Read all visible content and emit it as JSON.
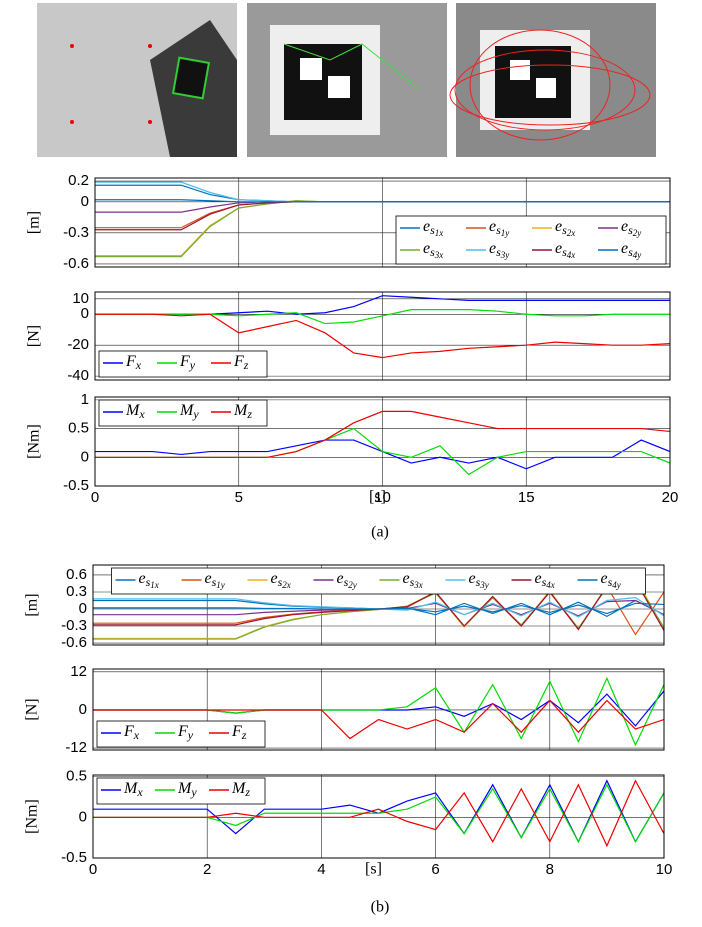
{
  "captions": [
    "(a)",
    "(b)"
  ],
  "chart_data": [
    {
      "type": "line",
      "ylabel": "[m]",
      "xlim": [
        0,
        20
      ],
      "xticks": [
        0,
        5,
        10,
        15,
        20
      ],
      "xtick_labels": false,
      "ylim": [
        -0.63,
        0.23
      ],
      "yticks": [
        0.2,
        0,
        -0.3,
        -0.6
      ],
      "grid": true,
      "legend": "lower right",
      "legend_columns": 4,
      "x": [
        0,
        1,
        2,
        3,
        4,
        5,
        6,
        7,
        8,
        9,
        10,
        11,
        12,
        13,
        14,
        15,
        16,
        17,
        18,
        19,
        20
      ],
      "series": [
        {
          "name": "es1x",
          "color": "#0072bd",
          "values": [
            0.16,
            0.16,
            0.16,
            0.16,
            0.07,
            0.02,
            0.01,
            0,
            0,
            0,
            0,
            0,
            0,
            0,
            0,
            0,
            0,
            0,
            0,
            0,
            0
          ]
        },
        {
          "name": "es1y",
          "color": "#d95319",
          "values": [
            -0.25,
            -0.25,
            -0.25,
            -0.25,
            -0.11,
            -0.03,
            -0.01,
            0,
            0,
            0,
            0,
            0,
            0,
            0,
            0,
            0,
            0,
            0,
            0,
            0,
            0
          ]
        },
        {
          "name": "es2x",
          "color": "#edb120",
          "values": [
            -0.52,
            -0.52,
            -0.52,
            -0.52,
            -0.23,
            -0.06,
            -0.02,
            0.01,
            0,
            0,
            0,
            0,
            0,
            0,
            0,
            0,
            0,
            0,
            0,
            0,
            0
          ]
        },
        {
          "name": "es2y",
          "color": "#7e2f8e",
          "values": [
            -0.1,
            -0.1,
            -0.1,
            -0.1,
            -0.05,
            -0.01,
            0,
            0,
            0,
            0,
            0,
            0,
            0,
            0,
            0,
            0,
            0,
            0,
            0,
            0,
            0
          ]
        },
        {
          "name": "es3x",
          "color": "#77ac30",
          "values": [
            -0.53,
            -0.53,
            -0.53,
            -0.53,
            -0.24,
            -0.06,
            -0.02,
            0.01,
            0,
            0,
            0,
            0,
            0,
            0,
            0,
            0,
            0,
            0,
            0,
            0,
            0
          ]
        },
        {
          "name": "es3y",
          "color": "#4dbeee",
          "values": [
            0.19,
            0.19,
            0.19,
            0.19,
            0.09,
            0.02,
            0.01,
            0,
            0,
            0,
            0,
            0,
            0,
            0,
            0,
            0,
            0,
            0,
            0,
            0,
            0
          ]
        },
        {
          "name": "es4x",
          "color": "#a2142f",
          "values": [
            -0.27,
            -0.27,
            -0.27,
            -0.27,
            -0.12,
            -0.03,
            -0.01,
            0,
            0,
            0,
            0,
            0,
            0,
            0,
            0,
            0,
            0,
            0,
            0,
            0,
            0
          ]
        },
        {
          "name": "es4y",
          "color": "#0072bd",
          "values": [
            0.02,
            0.02,
            0.02,
            0.02,
            0.01,
            0,
            0,
            0,
            0,
            0,
            0,
            0,
            0,
            0,
            0,
            0,
            0,
            0,
            0,
            0,
            0
          ]
        }
      ]
    },
    {
      "type": "line",
      "ylabel": "[N]",
      "xlim": [
        0,
        20
      ],
      "xticks": [
        0,
        5,
        10,
        15,
        20
      ],
      "xtick_labels": false,
      "ylim": [
        -42.5,
        14.4
      ],
      "yticks": [
        10,
        0,
        -20,
        -40
      ],
      "grid": true,
      "legend": "lower left",
      "legend_columns": 3,
      "x": [
        0,
        1,
        2,
        3,
        4,
        5,
        6,
        7,
        8,
        9,
        10,
        11,
        12,
        13,
        14,
        15,
        16,
        17,
        18,
        19,
        20
      ],
      "series": [
        {
          "name": "Fx",
          "color": "#0000ff",
          "values": [
            0,
            0,
            0,
            0,
            0,
            1,
            2,
            0,
            1,
            5,
            12,
            11,
            10,
            9,
            9,
            9,
            9,
            9,
            9,
            9,
            9
          ]
        },
        {
          "name": "Fy",
          "color": "#00dd00",
          "values": [
            0,
            0,
            0,
            0,
            0,
            -1,
            0,
            1,
            -6,
            -5,
            -1,
            3,
            3,
            3,
            2,
            0,
            -1,
            -1,
            0,
            0,
            0
          ]
        },
        {
          "name": "Fz",
          "color": "#ee0000",
          "values": [
            0,
            0,
            0,
            -1,
            0,
            -12,
            -8,
            -4,
            -12,
            -25,
            -28,
            -25,
            -24,
            -22,
            -21,
            -20,
            -18,
            -19,
            -20,
            -20,
            -19
          ]
        }
      ]
    },
    {
      "type": "line",
      "ylabel": "[Nm]",
      "xlabel": "[s]",
      "xlim": [
        0,
        20
      ],
      "xticks": [
        0,
        5,
        10,
        15,
        20
      ],
      "xtick_labels": true,
      "ylim": [
        -0.5,
        1.05
      ],
      "yticks": [
        1,
        0.5,
        0,
        -0.5
      ],
      "grid": true,
      "legend": "upper left",
      "legend_columns": 3,
      "x": [
        0,
        1,
        2,
        3,
        4,
        5,
        6,
        7,
        8,
        9,
        10,
        11,
        12,
        13,
        14,
        15,
        16,
        17,
        18,
        19,
        20
      ],
      "series": [
        {
          "name": "Mx",
          "color": "#0000ff",
          "values": [
            0.1,
            0.1,
            0.1,
            0.05,
            0.1,
            0.1,
            0.1,
            0.2,
            0.3,
            0.3,
            0.1,
            -0.1,
            0,
            -0.1,
            0,
            -0.2,
            0,
            0,
            0,
            0.3,
            0.1
          ]
        },
        {
          "name": "My",
          "color": "#00dd00",
          "values": [
            0,
            0,
            0,
            0,
            0,
            0,
            0,
            0.1,
            0.3,
            0.5,
            0.1,
            0,
            0.2,
            -0.3,
            0,
            0.1,
            0.1,
            0.1,
            0.1,
            0.1,
            -0.1
          ]
        },
        {
          "name": "Mz",
          "color": "#ee0000",
          "values": [
            0,
            0,
            0,
            0,
            0,
            0,
            0,
            0.1,
            0.3,
            0.6,
            0.8,
            0.8,
            0.7,
            0.6,
            0.5,
            0.5,
            0.5,
            0.5,
            0.5,
            0.5,
            0.45
          ]
        }
      ]
    },
    {
      "type": "line",
      "ylabel": "[m]",
      "xlim": [
        0,
        10
      ],
      "xticks": [
        0,
        2,
        4,
        6,
        8,
        10
      ],
      "xtick_labels": false,
      "ylim": [
        -0.635,
        0.776
      ],
      "yticks": [
        0.6,
        0.3,
        0,
        -0.3,
        -0.6
      ],
      "grid": true,
      "legend": "upper center",
      "legend_columns": 8,
      "x": [
        0,
        0.5,
        1,
        1.5,
        2,
        2.5,
        3,
        3.5,
        4,
        4.5,
        5,
        5.5,
        6,
        6.5,
        7,
        7.5,
        8,
        8.5,
        9,
        9.5,
        10
      ],
      "series": [
        {
          "name": "es1x",
          "color": "#0072bd",
          "values": [
            0.15,
            0.15,
            0.15,
            0.15,
            0.15,
            0.15,
            0.09,
            0.05,
            0.03,
            0.02,
            0,
            0.02,
            -0.1,
            0.1,
            -0.08,
            0.1,
            -0.1,
            0.12,
            -0.13,
            0.15,
            -0.1
          ]
        },
        {
          "name": "es1y",
          "color": "#d95319",
          "values": [
            -0.25,
            -0.25,
            -0.25,
            -0.25,
            -0.25,
            -0.25,
            -0.15,
            -0.09,
            -0.05,
            -0.02,
            0,
            0.03,
            0.3,
            -0.3,
            0.2,
            -0.3,
            0.3,
            -0.35,
            0.4,
            -0.45,
            0.3
          ]
        },
        {
          "name": "es2x",
          "color": "#edb120",
          "values": [
            -0.52,
            -0.52,
            -0.52,
            -0.52,
            -0.52,
            -0.52,
            -0.31,
            -0.18,
            -0.1,
            -0.05,
            -0.01,
            0.05,
            0.3,
            -0.32,
            0.22,
            -0.3,
            0.32,
            -0.36,
            0.4,
            0.55,
            -0.35
          ]
        },
        {
          "name": "es2y",
          "color": "#7e2f8e",
          "values": [
            -0.1,
            -0.1,
            -0.1,
            -0.1,
            -0.1,
            -0.1,
            -0.06,
            -0.04,
            -0.02,
            -0.01,
            0,
            0.01,
            0.1,
            -0.1,
            0.08,
            -0.1,
            0.1,
            -0.12,
            0.13,
            0.15,
            -0.1
          ]
        },
        {
          "name": "es3x",
          "color": "#77ac30",
          "values": [
            -0.53,
            -0.53,
            -0.53,
            -0.53,
            -0.53,
            -0.53,
            -0.32,
            -0.19,
            -0.1,
            -0.05,
            -0.01,
            0.05,
            0.28,
            -0.3,
            0.2,
            -0.28,
            0.3,
            -0.34,
            0.38,
            0.5,
            -0.33
          ]
        },
        {
          "name": "es3y",
          "color": "#4dbeee",
          "values": [
            0.18,
            0.18,
            0.18,
            0.18,
            0.18,
            0.18,
            0.11,
            0.06,
            0.04,
            0.02,
            0,
            -0.02,
            0.12,
            -0.1,
            0.1,
            -0.12,
            0.12,
            -0.14,
            0.15,
            0.2,
            -0.12
          ]
        },
        {
          "name": "es4x",
          "color": "#a2142f",
          "values": [
            -0.28,
            -0.28,
            -0.28,
            -0.28,
            -0.28,
            -0.28,
            -0.17,
            -0.1,
            -0.06,
            -0.03,
            0,
            0.04,
            0.3,
            -0.3,
            0.22,
            -0.3,
            0.3,
            -0.36,
            0.4,
            0.5,
            -0.38
          ]
        },
        {
          "name": "es4y",
          "color": "#0072bd",
          "values": [
            0.02,
            0.02,
            0.02,
            0.02,
            0.02,
            0.02,
            0.01,
            0.01,
            0,
            0,
            0,
            0.01,
            -0.05,
            0.05,
            -0.05,
            0.06,
            -0.06,
            0.07,
            -0.08,
            0.1,
            0.08
          ]
        }
      ]
    },
    {
      "type": "line",
      "ylabel": "[N]",
      "xlim": [
        0,
        10
      ],
      "xticks": [
        0,
        2,
        4,
        6,
        8,
        10
      ],
      "xtick_labels": false,
      "ylim": [
        -12.6,
        12.9
      ],
      "yticks": [
        12,
        0,
        -12
      ],
      "grid": true,
      "legend": "lower left",
      "legend_columns": 3,
      "x": [
        0,
        0.5,
        1,
        1.5,
        2,
        2.5,
        3,
        3.5,
        4,
        4.5,
        5,
        5.5,
        6,
        6.5,
        7,
        7.5,
        8,
        8.5,
        9,
        9.5,
        10
      ],
      "series": [
        {
          "name": "Fx",
          "color": "#0000ff",
          "values": [
            0,
            0,
            0,
            0,
            0,
            -1,
            0,
            0,
            0,
            0,
            0,
            0,
            1,
            -2,
            2,
            -3,
            3,
            -4,
            5,
            -5,
            6
          ]
        },
        {
          "name": "Fy",
          "color": "#00dd00",
          "values": [
            0,
            0,
            0,
            0,
            0,
            -1,
            0,
            0,
            0,
            0,
            0,
            1,
            7,
            -7,
            8,
            -9,
            9,
            -10,
            10,
            -11,
            8
          ]
        },
        {
          "name": "Fz",
          "color": "#ee0000",
          "values": [
            0,
            0,
            0,
            0,
            0,
            0,
            0,
            0,
            0,
            -9,
            -3,
            -6,
            -3,
            -7,
            2,
            -7,
            3,
            -7,
            3,
            -6,
            -3
          ]
        }
      ]
    },
    {
      "type": "line",
      "ylabel": "[Nm]",
      "xlabel": "[s]",
      "xlim": [
        0,
        10
      ],
      "xticks": [
        0,
        2,
        4,
        6,
        8,
        10
      ],
      "xtick_labels": true,
      "ylim": [
        -0.5,
        0.52
      ],
      "yticks": [
        0.5,
        0,
        -0.5
      ],
      "grid": true,
      "legend": "upper left",
      "legend_columns": 3,
      "x": [
        0,
        0.5,
        1,
        1.5,
        2,
        2.5,
        3,
        3.5,
        4,
        4.5,
        5,
        5.5,
        6,
        6.5,
        7,
        7.5,
        8,
        8.5,
        9,
        9.5,
        10
      ],
      "series": [
        {
          "name": "Mx",
          "color": "#0000ff",
          "values": [
            0.1,
            0.1,
            0.1,
            0.1,
            0.1,
            -0.2,
            0.1,
            0.1,
            0.1,
            0.15,
            0.05,
            0.2,
            0.3,
            -0.2,
            0.4,
            -0.25,
            0.4,
            -0.3,
            0.45,
            -0.3,
            0.3
          ]
        },
        {
          "name": "My",
          "color": "#00dd00",
          "values": [
            0,
            0,
            0,
            0,
            0,
            -0.1,
            0.05,
            0.05,
            0.05,
            0.05,
            0.05,
            0.1,
            0.25,
            -0.2,
            0.35,
            -0.25,
            0.35,
            -0.3,
            0.4,
            -0.3,
            0.3
          ]
        },
        {
          "name": "Mz",
          "color": "#ee0000",
          "values": [
            0,
            0,
            0,
            0,
            0,
            0.05,
            0,
            0,
            0,
            0,
            0.1,
            -0.05,
            -0.15,
            0.3,
            -0.3,
            0.35,
            -0.3,
            0.4,
            -0.35,
            0.45,
            -0.2
          ]
        }
      ]
    }
  ]
}
